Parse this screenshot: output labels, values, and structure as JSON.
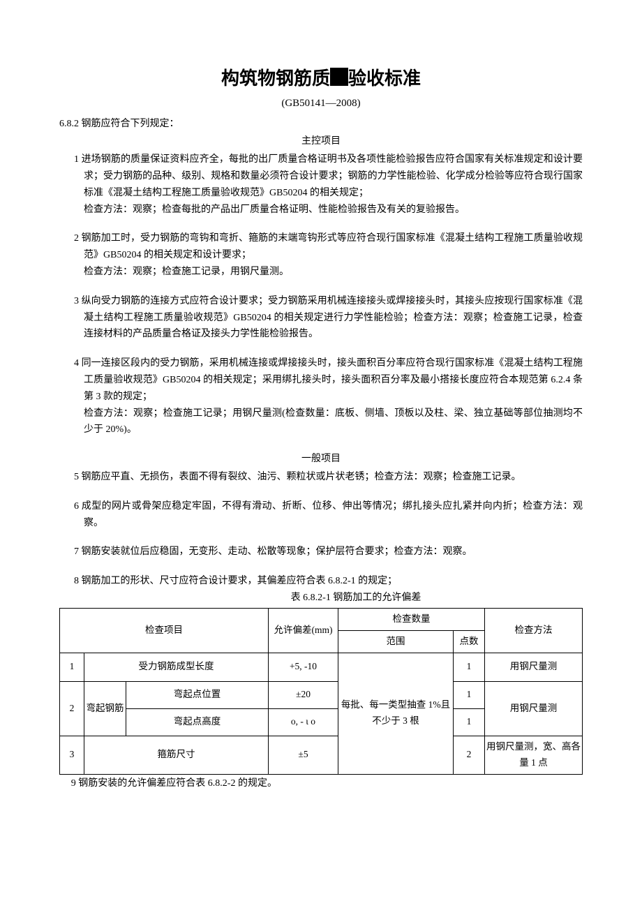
{
  "title_pre": "构筑物钢筋质",
  "title_post": "验收标准",
  "subtitle": "(GB50141—2008)",
  "clause_header": "6.8.2 钢筋应符合下列规定：",
  "section1_title": "主控项目",
  "items1": [
    {
      "num": "1",
      "lines": [
        "进场钢筋的质量保证资料应齐全，每批的出厂质量合格证明书及各项性能检验报告应符合国家有关标准规定和设计要求；受力钢筋的品种、级别、规格和数量必须符合设计要求；钢筋的力学性能检验、化学成分检验等应符合现行国家标准《混凝土结构工程施工质量验收规范》GB50204 的相关规定；",
        "检查方法：观察；检查每批的产品出厂质量合格证明、性能检验报告及有关的复验报告。"
      ]
    },
    {
      "num": "2",
      "lines": [
        "钢筋加工时，受力钢筋的弯钩和弯折、箍筋的末端弯钩形式等应符合现行国家标准《混凝土结构工程施工质量验收规范》GB50204 的相关规定和设计要求；",
        "检查方法：观察；检查施工记录，用钢尺量测。"
      ]
    },
    {
      "num": "3",
      "lines": [
        "纵向受力钢筋的连接方式应符合设计要求；受力钢筋采用机械连接接头或焊接接头时，其接头应按现行国家标准《混凝土结构工程施工质量验收规范》GB50204 的相关规定进行力学性能检验；检查方法：观察；检查施工记录，检查连接材料的产品质量合格证及接头力学性能检验报告。"
      ]
    },
    {
      "num": "4",
      "lines": [
        "同一连接区段内的受力钢筋，采用机械连接或焊接接头时，接头面积百分率应符合现行国家标准《混凝土结构工程施工质量验收规范》GB50204 的相关规定；采用绑扎接头时，接头面积百分率及最小搭接长度应符合本规范第 6.2.4 条第 3 款的规定；",
        "检查方法：观察；检查施工记录；用钢尺量测(检查数量：底板、侧墙、顶板以及柱、梁、独立基础等部位抽测均不少于 20%)。"
      ]
    }
  ],
  "section2_title": "一般项目",
  "items2": [
    {
      "num": "5",
      "text": "钢筋应平直、无损伤，表面不得有裂纹、油污、颗粒状或片状老锈；检查方法：观察；检查施工记录。"
    },
    {
      "num": "6",
      "text": "成型的网片或骨架应稳定牢固，不得有滑动、折断、位移、伸出等情况；绑扎接头应扎紧并向内折；检查方法：观察。"
    },
    {
      "num": "7",
      "text": "钢筋安装就位后应稳固，无变形、走动、松散等现象；保护层符合要求；检查方法：观察。"
    },
    {
      "num": "8",
      "text": "钢筋加工的形状、尺寸应符合设计要求，其偏差应符合表 6.8.2-1 的规定；"
    }
  ],
  "table_caption": "表 6.8.2-1 钢筋加工的允许偏差",
  "table": {
    "headers": {
      "item": "检查项目",
      "tol": "允许偏差(mm)",
      "qty": "检查数量",
      "range": "范围",
      "points": "点数",
      "method": "检查方法"
    },
    "range_merged": "每批、每一类型抽查 1%且不少于 3 根",
    "rows": [
      {
        "n": "1",
        "item_merged": "受力钢筋成型长度",
        "tol": "+5, -10",
        "points": "1",
        "method": "用钢尺量测"
      },
      {
        "n": "2",
        "sub_label": "弯起钢筋",
        "sub1": "弯起点位置",
        "tol1": "±20",
        "pts1": "1",
        "sub2": "弯起点高度",
        "tol2": "o, - ι o",
        "pts2": "1",
        "method": "用钢尺量测"
      },
      {
        "n": "3",
        "item_merged": "箍筋尺寸",
        "tol": "±5",
        "points": "2",
        "method": "用钢尺量测，宽、高各量 1 点"
      }
    ]
  },
  "footnote": "9 钢筋安装的允许偏差应符合表 6.8.2-2 的规定。"
}
